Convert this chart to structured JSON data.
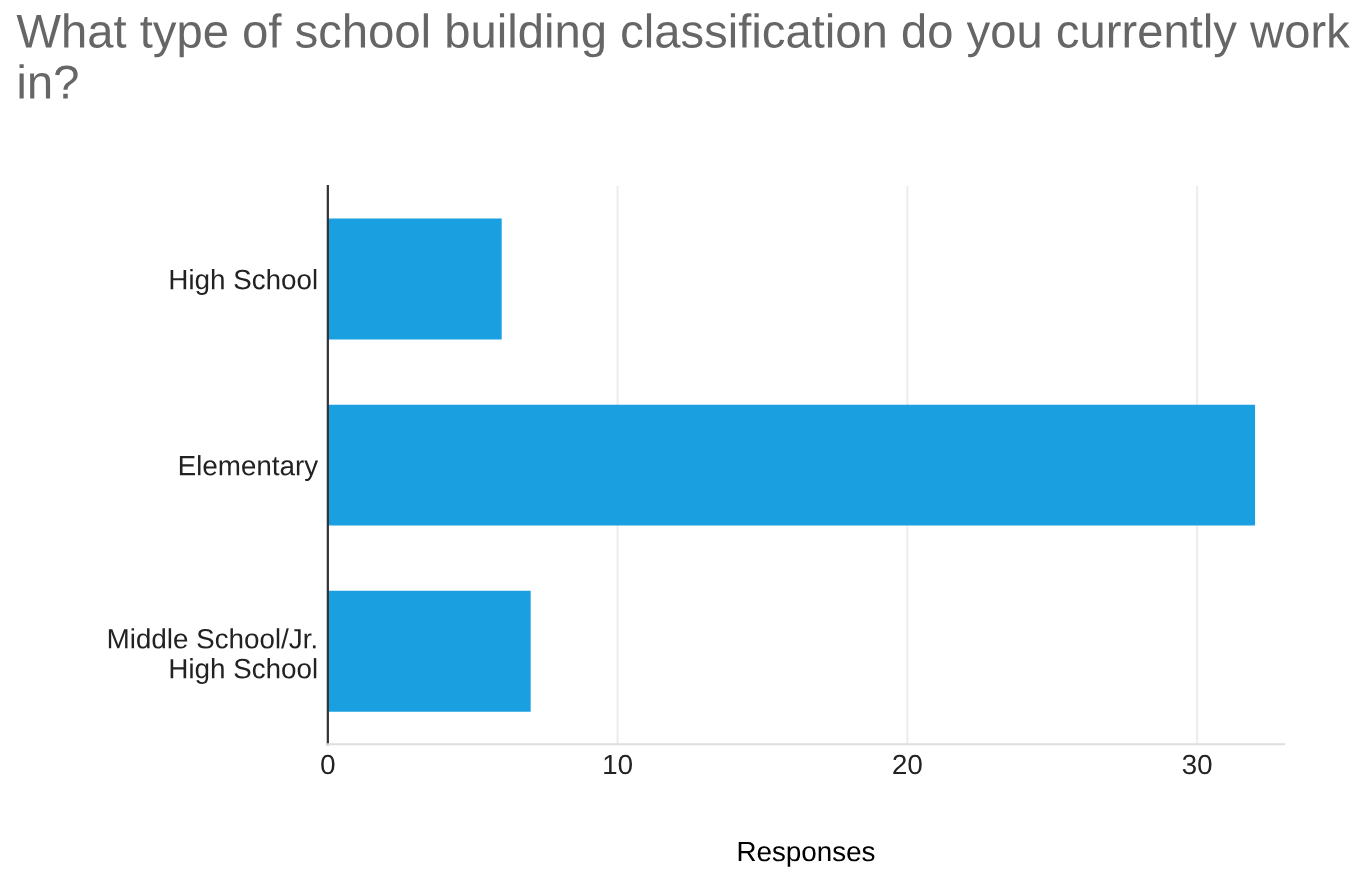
{
  "chart_data": {
    "type": "bar",
    "orientation": "horizontal",
    "title": "What type of school building classification do you currently work in?",
    "xlabel": "Responses",
    "categories": [
      "High School",
      "Elementary",
      "Middle School/Jr.\nHigh School"
    ],
    "values": [
      6,
      32,
      7
    ],
    "color": "#1a9fe0",
    "xlim": [
      0,
      33
    ],
    "xticks": [
      0,
      10,
      20,
      30
    ],
    "grid": "x"
  }
}
